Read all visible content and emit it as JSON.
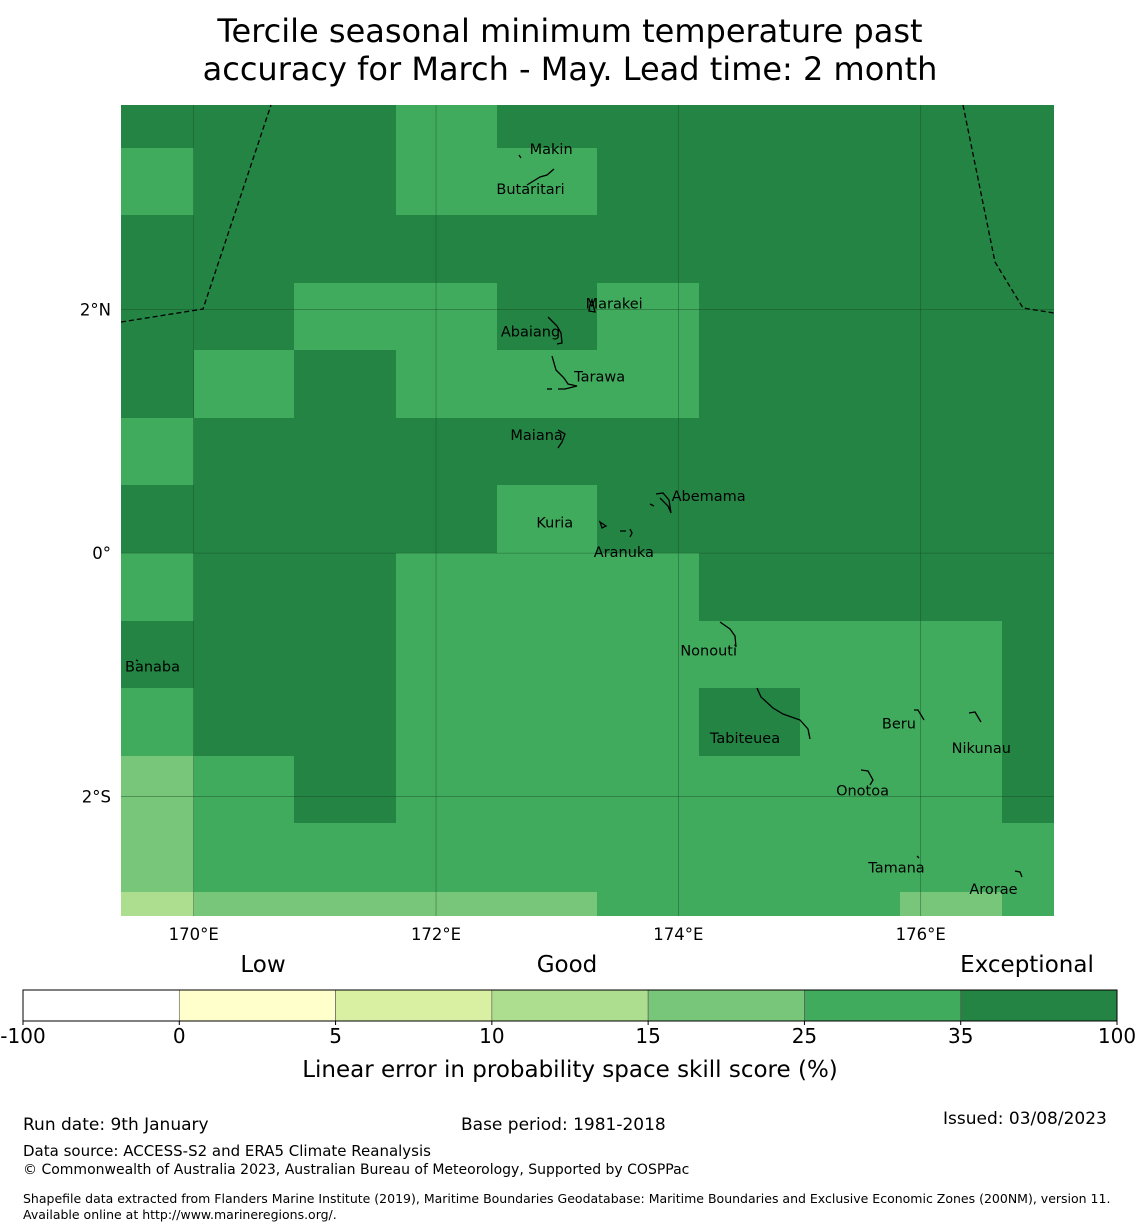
{
  "title": {
    "line1": "Tercile seasonal minimum temperature past",
    "line2": "accuracy for March - May. Lead time: 2 month"
  },
  "map": {
    "lon_range": [
      169.4,
      177.1
    ],
    "lat_range": [
      -2.98,
      3.68
    ],
    "x_ticks": [
      {
        "lon": 170,
        "label": "170°E"
      },
      {
        "lon": 172,
        "label": "172°E"
      },
      {
        "lon": 174,
        "label": "174°E"
      },
      {
        "lon": 176,
        "label": "176°E"
      }
    ],
    "y_ticks": [
      {
        "lat": 2,
        "label": "2°N"
      },
      {
        "lat": 0,
        "label": "0°"
      },
      {
        "lat": -2,
        "label": "2°S"
      }
    ],
    "grid": {
      "lon_edges": [
        169.4,
        170.0,
        170.83,
        171.67,
        172.5,
        173.33,
        174.17,
        175.0,
        175.83,
        176.67,
        177.1
      ],
      "lat_edges": [
        3.68,
        3.33,
        2.78,
        2.22,
        1.67,
        1.11,
        0.56,
        0.0,
        -0.56,
        -1.11,
        -1.67,
        -2.22,
        -2.78,
        -2.98
      ],
      "rows": [
        [
          35,
          35,
          35,
          25,
          35,
          35,
          35,
          35,
          35,
          35
        ],
        [
          25,
          35,
          35,
          25,
          25,
          35,
          35,
          35,
          35,
          35
        ],
        [
          35,
          35,
          35,
          35,
          35,
          35,
          35,
          35,
          35,
          35
        ],
        [
          35,
          35,
          25,
          25,
          35,
          25,
          35,
          35,
          35,
          35
        ],
        [
          35,
          25,
          35,
          25,
          25,
          25,
          35,
          35,
          35,
          35
        ],
        [
          25,
          35,
          35,
          35,
          35,
          35,
          35,
          35,
          35,
          35
        ],
        [
          35,
          35,
          35,
          35,
          25,
          35,
          35,
          35,
          35,
          35
        ],
        [
          25,
          35,
          35,
          25,
          25,
          25,
          35,
          35,
          35,
          35
        ],
        [
          35,
          35,
          35,
          25,
          25,
          25,
          25,
          25,
          25,
          35
        ],
        [
          25,
          35,
          35,
          25,
          25,
          25,
          35,
          25,
          25,
          35
        ],
        [
          15,
          25,
          35,
          25,
          25,
          25,
          25,
          25,
          25,
          35
        ],
        [
          15,
          25,
          25,
          25,
          25,
          25,
          25,
          25,
          25,
          25
        ],
        [
          10,
          15,
          15,
          15,
          15,
          25,
          25,
          25,
          15,
          25
        ]
      ]
    },
    "islands": [
      {
        "name": "Makin",
        "lon": 172.95,
        "lat": 3.32
      },
      {
        "name": "Butaritari",
        "lon": 172.78,
        "lat": 2.99
      },
      {
        "name": "Marakei",
        "lon": 173.47,
        "lat": 2.05
      },
      {
        "name": "Abaiang",
        "lon": 172.78,
        "lat": 1.82
      },
      {
        "name": "Tarawa",
        "lon": 173.35,
        "lat": 1.45
      },
      {
        "name": "Maiana",
        "lon": 172.83,
        "lat": 0.97
      },
      {
        "name": "Abemama",
        "lon": 174.25,
        "lat": 0.47
      },
      {
        "name": "Kuria",
        "lon": 172.98,
        "lat": 0.25
      },
      {
        "name": "Aranuka",
        "lon": 173.55,
        "lat": 0.01
      },
      {
        "name": "Nonouti",
        "lon": 174.25,
        "lat": -0.8
      },
      {
        "name": "Banaba",
        "lon": 169.66,
        "lat": -0.93
      },
      {
        "name": "Beru",
        "lon": 175.82,
        "lat": -1.4
      },
      {
        "name": "Tabiteuea",
        "lon": 174.55,
        "lat": -1.52
      },
      {
        "name": "Nikunau",
        "lon": 176.5,
        "lat": -1.6
      },
      {
        "name": "Onotoa",
        "lon": 175.52,
        "lat": -1.95
      },
      {
        "name": "Tamana",
        "lon": 175.8,
        "lat": -2.58
      },
      {
        "name": "Arorae",
        "lon": 176.6,
        "lat": -2.76
      }
    ]
  },
  "legend": {
    "category_low": "Low",
    "category_good": "Good",
    "category_exceptional": "Exceptional",
    "bins": [
      {
        "from": -100,
        "to": 0,
        "color": "#ffffff"
      },
      {
        "from": 0,
        "to": 5,
        "color": "#ffffcc"
      },
      {
        "from": 5,
        "to": 10,
        "color": "#d9f0a3"
      },
      {
        "from": 10,
        "to": 15,
        "color": "#addd8e"
      },
      {
        "from": 15,
        "to": 25,
        "color": "#78c679"
      },
      {
        "from": 25,
        "to": 35,
        "color": "#41ab5d"
      },
      {
        "from": 35,
        "to": 100,
        "color": "#238443"
      }
    ],
    "tick_labels": [
      "-100",
      "0",
      "5",
      "10",
      "15",
      "25",
      "35",
      "100"
    ],
    "axis_label": "Linear error in probability space skill score (%)"
  },
  "footer": {
    "run_date": "Run date: 9th January",
    "base_period": "Base period: 1981-2018",
    "issued": "Issued: 03/08/2023",
    "data_source": "Data source: ACCESS-S2 and ERA5 Climate Reanalysis",
    "copyright": "© Commonwealth of Australia 2023, Australian Bureau of Meteorology, Supported by COSPPac",
    "shapefile": "Shapefile data extracted from Flanders Marine Institute (2019), Maritime Boundaries Geodatabase: Maritime Boundaries and Exclusive Economic Zones (200NM), version 11. Available online at http://www.marineregions.org/."
  }
}
